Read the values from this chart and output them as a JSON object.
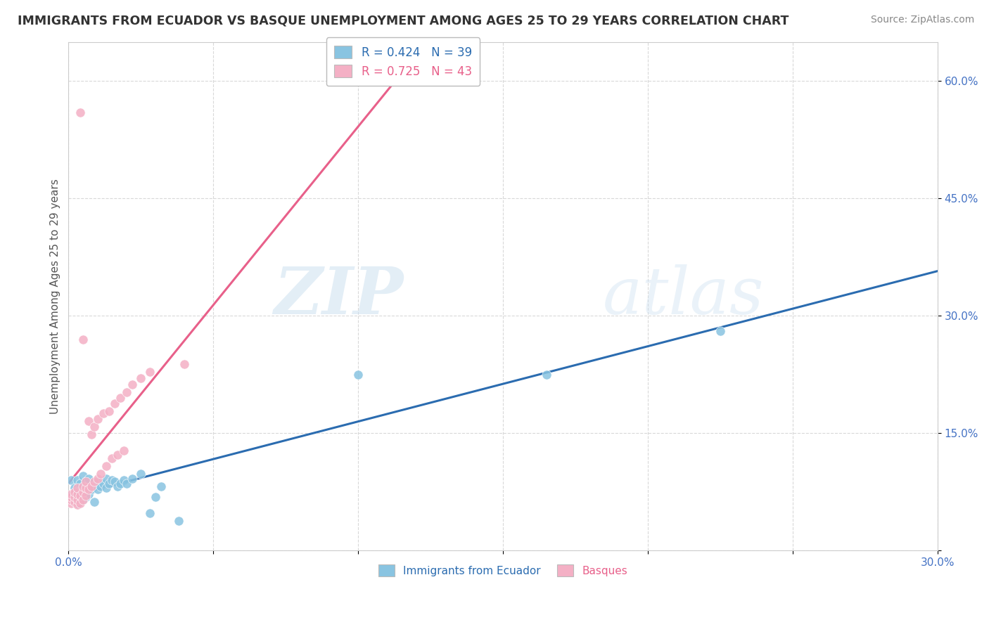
{
  "title": "IMMIGRANTS FROM ECUADOR VS BASQUE UNEMPLOYMENT AMONG AGES 25 TO 29 YEARS CORRELATION CHART",
  "source": "Source: ZipAtlas.com",
  "ylabel": "Unemployment Among Ages 25 to 29 years",
  "xlim": [
    0.0,
    0.3
  ],
  "ylim": [
    0.0,
    0.65
  ],
  "xtick_vals": [
    0.0,
    0.05,
    0.1,
    0.15,
    0.2,
    0.25,
    0.3
  ],
  "ytick_vals": [
    0.0,
    0.15,
    0.3,
    0.45,
    0.6
  ],
  "blue_color": "#89c4e1",
  "pink_color": "#f4b0c5",
  "blue_line_color": "#2b6cb0",
  "pink_line_color": "#e8608a",
  "legend_r1": "0.424",
  "legend_n1": "39",
  "legend_r2": "0.725",
  "legend_n2": "43",
  "blue_scatter_x": [
    0.001,
    0.001,
    0.002,
    0.002,
    0.003,
    0.003,
    0.003,
    0.004,
    0.004,
    0.005,
    0.005,
    0.006,
    0.006,
    0.007,
    0.007,
    0.008,
    0.009,
    0.01,
    0.01,
    0.011,
    0.012,
    0.013,
    0.013,
    0.014,
    0.015,
    0.016,
    0.017,
    0.018,
    0.019,
    0.02,
    0.022,
    0.025,
    0.028,
    0.03,
    0.032,
    0.038,
    0.1,
    0.165,
    0.225
  ],
  "blue_scatter_y": [
    0.07,
    0.09,
    0.065,
    0.08,
    0.06,
    0.075,
    0.09,
    0.07,
    0.085,
    0.065,
    0.095,
    0.068,
    0.088,
    0.072,
    0.092,
    0.078,
    0.062,
    0.078,
    0.088,
    0.082,
    0.085,
    0.08,
    0.092,
    0.085,
    0.09,
    0.088,
    0.082,
    0.085,
    0.09,
    0.085,
    0.092,
    0.098,
    0.048,
    0.068,
    0.082,
    0.038,
    0.225,
    0.225,
    0.28
  ],
  "pink_scatter_x": [
    0.001,
    0.001,
    0.001,
    0.001,
    0.002,
    0.002,
    0.002,
    0.003,
    0.003,
    0.003,
    0.003,
    0.004,
    0.004,
    0.004,
    0.005,
    0.005,
    0.005,
    0.005,
    0.006,
    0.006,
    0.006,
    0.007,
    0.007,
    0.008,
    0.008,
    0.009,
    0.009,
    0.01,
    0.01,
    0.011,
    0.012,
    0.013,
    0.014,
    0.015,
    0.016,
    0.017,
    0.018,
    0.019,
    0.02,
    0.022,
    0.025,
    0.028,
    0.04
  ],
  "pink_scatter_y": [
    0.06,
    0.065,
    0.068,
    0.072,
    0.062,
    0.068,
    0.075,
    0.058,
    0.065,
    0.072,
    0.08,
    0.06,
    0.07,
    0.56,
    0.065,
    0.075,
    0.082,
    0.27,
    0.07,
    0.08,
    0.088,
    0.078,
    0.165,
    0.082,
    0.148,
    0.088,
    0.158,
    0.092,
    0.168,
    0.098,
    0.175,
    0.108,
    0.178,
    0.118,
    0.188,
    0.122,
    0.195,
    0.128,
    0.202,
    0.212,
    0.22,
    0.228,
    0.238
  ]
}
